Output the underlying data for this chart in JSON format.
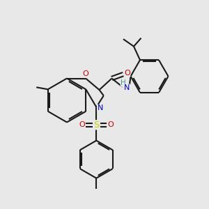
{
  "bg_color": "#e8e8e8",
  "bond_color": "#1a1a1a",
  "atom_colors": {
    "O": "#cc0000",
    "N": "#0000cc",
    "S": "#cccc00",
    "H": "#4a9a9a",
    "C": "#1a1a1a"
  },
  "line_width": 1.5,
  "doff_inner": 0.06,
  "doff_outer": 0.09
}
